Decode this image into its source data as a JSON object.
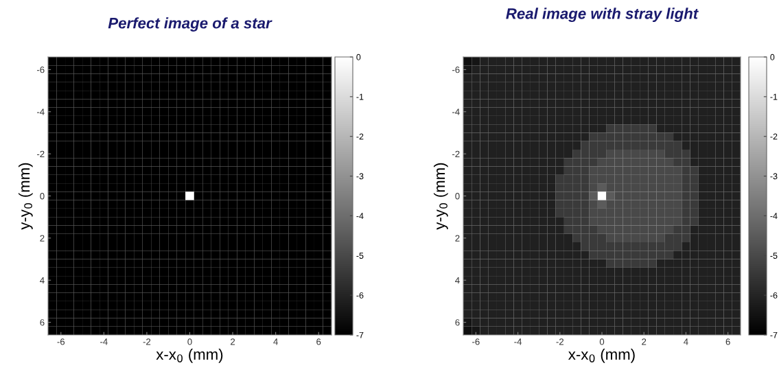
{
  "chart_data": [
    {
      "type": "heatmap",
      "title": "Perfect image of a star",
      "xlabel": "x-x$_{0}$ (mm)",
      "ylabel": "y-y$_{0}$ (mm)",
      "x": [
        -6.4,
        -6.0,
        -5.6,
        -5.2,
        -4.8,
        -4.4,
        -4.0,
        -3.6,
        -3.2,
        -2.8,
        -2.4,
        -2.0,
        -1.6,
        -1.2,
        -0.8,
        -0.4,
        0,
        0.4,
        0.8,
        1.2,
        1.6,
        2.0,
        2.4,
        2.8,
        3.2,
        3.6,
        4.0,
        4.4,
        4.8,
        5.2,
        5.6,
        6.0,
        6.4
      ],
      "y": [
        -6.4,
        -6.0,
        -5.6,
        -5.2,
        -4.8,
        -4.4,
        -4.0,
        -3.6,
        -3.2,
        -2.8,
        -2.4,
        -2.0,
        -1.6,
        -1.2,
        -0.8,
        -0.4,
        0,
        0.4,
        0.8,
        1.2,
        1.6,
        2.0,
        2.4,
        2.8,
        3.2,
        3.6,
        4.0,
        4.4,
        4.8,
        5.2,
        5.6,
        6.0,
        6.4
      ],
      "xlim": [
        -6.6,
        6.6
      ],
      "ylim": [
        6.6,
        -6.6
      ],
      "xticks": [
        -6,
        -4,
        -2,
        0,
        2,
        4,
        6
      ],
      "yticks": [
        -6,
        -4,
        -2,
        0,
        2,
        4,
        6
      ],
      "clim": [
        -7,
        0
      ],
      "cticks": [
        -7,
        -6,
        -5,
        -4,
        -3,
        -2,
        -1,
        0
      ],
      "cells": [
        [
          -7,
          -7,
          -7,
          -7,
          -7,
          -7,
          -7,
          -7,
          -7,
          -7,
          -7,
          -7,
          -7,
          -7,
          -7,
          -7,
          -7,
          -7,
          -7,
          -7,
          -7,
          -7,
          -7,
          -7,
          -7,
          -7,
          -7,
          -7,
          -7,
          -7,
          -7,
          -7,
          -7
        ],
        [
          -7,
          -7,
          -7,
          -7,
          -7,
          -7,
          -7,
          -7,
          -7,
          -7,
          -7,
          -7,
          -7,
          -7,
          -7,
          -7,
          -7,
          -7,
          -7,
          -7,
          -7,
          -7,
          -7,
          -7,
          -7,
          -7,
          -7,
          -7,
          -7,
          -7,
          -7,
          -7,
          -7
        ],
        [
          -7,
          -7,
          -7,
          -7,
          -7,
          -7,
          -7,
          -7,
          -7,
          -7,
          -7,
          -7,
          -7,
          -7,
          -7,
          -7,
          -7,
          -7,
          -7,
          -7,
          -7,
          -7,
          -7,
          -7,
          -7,
          -7,
          -7,
          -7,
          -7,
          -7,
          -7,
          -7,
          -7
        ],
        [
          -7,
          -7,
          -7,
          -7,
          -7,
          -7,
          -7,
          -7,
          -7,
          -7,
          -7,
          -7,
          -7,
          -7,
          -7,
          -7,
          -7,
          -7,
          -7,
          -7,
          -7,
          -7,
          -7,
          -7,
          -7,
          -7,
          -7,
          -7,
          -7,
          -7,
          -7,
          -7,
          -7
        ],
        [
          -7,
          -7,
          -7,
          -7,
          -7,
          -7,
          -7,
          -7,
          -7,
          -7,
          -7,
          -7,
          -7,
          -7,
          -7,
          -7,
          -7,
          -7,
          -7,
          -7,
          -7,
          -7,
          -7,
          -7,
          -7,
          -7,
          -7,
          -7,
          -7,
          -7,
          -7,
          -7,
          -7
        ],
        [
          -7,
          -7,
          -7,
          -7,
          -7,
          -7,
          -7,
          -7,
          -7,
          -7,
          -7,
          -7,
          -7,
          -7,
          -7,
          -7,
          -7,
          -7,
          -7,
          -7,
          -7,
          -7,
          -7,
          -7,
          -7,
          -7,
          -7,
          -7,
          -7,
          -7,
          -7,
          -7,
          -7
        ],
        [
          -7,
          -7,
          -7,
          -7,
          -7,
          -7,
          -7,
          -7,
          -7,
          -7,
          -7,
          -7,
          -7,
          -7,
          -7,
          -7,
          -7,
          -7,
          -7,
          -7,
          -7,
          -7,
          -7,
          -7,
          -7,
          -7,
          -7,
          -7,
          -7,
          -7,
          -7,
          -7,
          -7
        ],
        [
          -7,
          -7,
          -7,
          -7,
          -7,
          -7,
          -7,
          -7,
          -7,
          -7,
          -7,
          -7,
          -7,
          -7,
          -7,
          -7,
          -7,
          -7,
          -7,
          -7,
          -7,
          -7,
          -7,
          -7,
          -7,
          -7,
          -7,
          -7,
          -7,
          -7,
          -7,
          -7,
          -7
        ],
        [
          -7,
          -7,
          -7,
          -7,
          -7,
          -7,
          -7,
          -7,
          -7,
          -7,
          -7,
          -7,
          -7,
          -7,
          -7,
          -7,
          -7,
          -7,
          -7,
          -7,
          -7,
          -7,
          -7,
          -7,
          -7,
          -7,
          -7,
          -7,
          -7,
          -7,
          -7,
          -7,
          -7
        ],
        [
          -7,
          -7,
          -7,
          -7,
          -7,
          -7,
          -7,
          -7,
          -7,
          -7,
          -7,
          -7,
          -7,
          -7,
          -7,
          -7,
          -7,
          -7,
          -7,
          -7,
          -7,
          -7,
          -7,
          -7,
          -7,
          -7,
          -7,
          -7,
          -7,
          -7,
          -7,
          -7,
          -7
        ],
        [
          -7,
          -7,
          -7,
          -7,
          -7,
          -7,
          -7,
          -7,
          -7,
          -7,
          -7,
          -7,
          -7,
          -7,
          -7,
          -7,
          -7,
          -7,
          -7,
          -7,
          -7,
          -7,
          -7,
          -7,
          -7,
          -7,
          -7,
          -7,
          -7,
          -7,
          -7,
          -7,
          -7
        ],
        [
          -7,
          -7,
          -7,
          -7,
          -7,
          -7,
          -7,
          -7,
          -7,
          -7,
          -7,
          -7,
          -7,
          -7,
          -7,
          -7,
          -7,
          -7,
          -7,
          -7,
          -7,
          -7,
          -7,
          -7,
          -7,
          -7,
          -7,
          -7,
          -7,
          -7,
          -7,
          -7,
          -7
        ],
        [
          -7,
          -7,
          -7,
          -7,
          -7,
          -7,
          -7,
          -7,
          -7,
          -7,
          -7,
          -7,
          -7,
          -7,
          -7,
          -7,
          -7,
          -7,
          -7,
          -7,
          -7,
          -7,
          -7,
          -7,
          -7,
          -7,
          -7,
          -7,
          -7,
          -7,
          -7,
          -7,
          -7
        ],
        [
          -7,
          -7,
          -7,
          -7,
          -7,
          -7,
          -7,
          -7,
          -7,
          -7,
          -7,
          -7,
          -7,
          -7,
          -7,
          -7,
          -7,
          -7,
          -7,
          -7,
          -7,
          -7,
          -7,
          -7,
          -7,
          -7,
          -7,
          -7,
          -7,
          -7,
          -7,
          -7,
          -7
        ],
        [
          -7,
          -7,
          -7,
          -7,
          -7,
          -7,
          -7,
          -7,
          -7,
          -7,
          -7,
          -7,
          -7,
          -7,
          -7,
          -7,
          -7,
          -7,
          -7,
          -7,
          -7,
          -7,
          -7,
          -7,
          -7,
          -7,
          -7,
          -7,
          -7,
          -7,
          -7,
          -7,
          -7
        ],
        [
          -7,
          -7,
          -7,
          -7,
          -7,
          -7,
          -7,
          -7,
          -7,
          -7,
          -7,
          -7,
          -7,
          -7,
          -7,
          -7,
          -7,
          -7,
          -7,
          -7,
          -7,
          -7,
          -7,
          -7,
          -7,
          -7,
          -7,
          -7,
          -7,
          -7,
          -7,
          -7,
          -7
        ],
        [
          -7,
          -7,
          -7,
          -7,
          -7,
          -7,
          -7,
          -7,
          -7,
          -7,
          -7,
          -7,
          -7,
          -7,
          -7,
          -7,
          0,
          -7,
          -7,
          -7,
          -7,
          -7,
          -7,
          -7,
          -7,
          -7,
          -7,
          -7,
          -7,
          -7,
          -7,
          -7,
          -7
        ],
        [
          -7,
          -7,
          -7,
          -7,
          -7,
          -7,
          -7,
          -7,
          -7,
          -7,
          -7,
          -7,
          -7,
          -7,
          -7,
          -7,
          -7,
          -7,
          -7,
          -7,
          -7,
          -7,
          -7,
          -7,
          -7,
          -7,
          -7,
          -7,
          -7,
          -7,
          -7,
          -7,
          -7
        ],
        [
          -7,
          -7,
          -7,
          -7,
          -7,
          -7,
          -7,
          -7,
          -7,
          -7,
          -7,
          -7,
          -7,
          -7,
          -7,
          -7,
          -7,
          -7,
          -7,
          -7,
          -7,
          -7,
          -7,
          -7,
          -7,
          -7,
          -7,
          -7,
          -7,
          -7,
          -7,
          -7,
          -7
        ],
        [
          -7,
          -7,
          -7,
          -7,
          -7,
          -7,
          -7,
          -7,
          -7,
          -7,
          -7,
          -7,
          -7,
          -7,
          -7,
          -7,
          -7,
          -7,
          -7,
          -7,
          -7,
          -7,
          -7,
          -7,
          -7,
          -7,
          -7,
          -7,
          -7,
          -7,
          -7,
          -7,
          -7
        ],
        [
          -7,
          -7,
          -7,
          -7,
          -7,
          -7,
          -7,
          -7,
          -7,
          -7,
          -7,
          -7,
          -7,
          -7,
          -7,
          -7,
          -7,
          -7,
          -7,
          -7,
          -7,
          -7,
          -7,
          -7,
          -7,
          -7,
          -7,
          -7,
          -7,
          -7,
          -7,
          -7,
          -7
        ],
        [
          -7,
          -7,
          -7,
          -7,
          -7,
          -7,
          -7,
          -7,
          -7,
          -7,
          -7,
          -7,
          -7,
          -7,
          -7,
          -7,
          -7,
          -7,
          -7,
          -7,
          -7,
          -7,
          -7,
          -7,
          -7,
          -7,
          -7,
          -7,
          -7,
          -7,
          -7,
          -7,
          -7
        ],
        [
          -7,
          -7,
          -7,
          -7,
          -7,
          -7,
          -7,
          -7,
          -7,
          -7,
          -7,
          -7,
          -7,
          -7,
          -7,
          -7,
          -7,
          -7,
          -7,
          -7,
          -7,
          -7,
          -7,
          -7,
          -7,
          -7,
          -7,
          -7,
          -7,
          -7,
          -7,
          -7,
          -7
        ],
        [
          -7,
          -7,
          -7,
          -7,
          -7,
          -7,
          -7,
          -7,
          -7,
          -7,
          -7,
          -7,
          -7,
          -7,
          -7,
          -7,
          -7,
          -7,
          -7,
          -7,
          -7,
          -7,
          -7,
          -7,
          -7,
          -7,
          -7,
          -7,
          -7,
          -7,
          -7,
          -7,
          -7
        ],
        [
          -7,
          -7,
          -7,
          -7,
          -7,
          -7,
          -7,
          -7,
          -7,
          -7,
          -7,
          -7,
          -7,
          -7,
          -7,
          -7,
          -7,
          -7,
          -7,
          -7,
          -7,
          -7,
          -7,
          -7,
          -7,
          -7,
          -7,
          -7,
          -7,
          -7,
          -7,
          -7,
          -7
        ],
        [
          -7,
          -7,
          -7,
          -7,
          -7,
          -7,
          -7,
          -7,
          -7,
          -7,
          -7,
          -7,
          -7,
          -7,
          -7,
          -7,
          -7,
          -7,
          -7,
          -7,
          -7,
          -7,
          -7,
          -7,
          -7,
          -7,
          -7,
          -7,
          -7,
          -7,
          -7,
          -7,
          -7
        ],
        [
          -7,
          -7,
          -7,
          -7,
          -7,
          -7,
          -7,
          -7,
          -7,
          -7,
          -7,
          -7,
          -7,
          -7,
          -7,
          -7,
          -7,
          -7,
          -7,
          -7,
          -7,
          -7,
          -7,
          -7,
          -7,
          -7,
          -7,
          -7,
          -7,
          -7,
          -7,
          -7,
          -7
        ],
        [
          -7,
          -7,
          -7,
          -7,
          -7,
          -7,
          -7,
          -7,
          -7,
          -7,
          -7,
          -7,
          -7,
          -7,
          -7,
          -7,
          -7,
          -7,
          -7,
          -7,
          -7,
          -7,
          -7,
          -7,
          -7,
          -7,
          -7,
          -7,
          -7,
          -7,
          -7,
          -7,
          -7
        ],
        [
          -7,
          -7,
          -7,
          -7,
          -7,
          -7,
          -7,
          -7,
          -7,
          -7,
          -7,
          -7,
          -7,
          -7,
          -7,
          -7,
          -7,
          -7,
          -7,
          -7,
          -7,
          -7,
          -7,
          -7,
          -7,
          -7,
          -7,
          -7,
          -7,
          -7,
          -7,
          -7,
          -7
        ],
        [
          -7,
          -7,
          -7,
          -7,
          -7,
          -7,
          -7,
          -7,
          -7,
          -7,
          -7,
          -7,
          -7,
          -7,
          -7,
          -7,
          -7,
          -7,
          -7,
          -7,
          -7,
          -7,
          -7,
          -7,
          -7,
          -7,
          -7,
          -7,
          -7,
          -7,
          -7,
          -7,
          -7
        ],
        [
          -7,
          -7,
          -7,
          -7,
          -7,
          -7,
          -7,
          -7,
          -7,
          -7,
          -7,
          -7,
          -7,
          -7,
          -7,
          -7,
          -7,
          -7,
          -7,
          -7,
          -7,
          -7,
          -7,
          -7,
          -7,
          -7,
          -7,
          -7,
          -7,
          -7,
          -7,
          -7,
          -7
        ],
        [
          -7,
          -7,
          -7,
          -7,
          -7,
          -7,
          -7,
          -7,
          -7,
          -7,
          -7,
          -7,
          -7,
          -7,
          -7,
          -7,
          -7,
          -7,
          -7,
          -7,
          -7,
          -7,
          -7,
          -7,
          -7,
          -7,
          -7,
          -7,
          -7,
          -7,
          -7,
          -7,
          -7
        ],
        [
          -7,
          -7,
          -7,
          -7,
          -7,
          -7,
          -7,
          -7,
          -7,
          -7,
          -7,
          -7,
          -7,
          -7,
          -7,
          -7,
          -7,
          -7,
          -7,
          -7,
          -7,
          -7,
          -7,
          -7,
          -7,
          -7,
          -7,
          -7,
          -7,
          -7,
          -7,
          -7,
          -7
        ]
      ]
    },
    {
      "type": "heatmap",
      "title": "Real image with stray light",
      "xlabel": "x-x$_{0}$ (mm)",
      "ylabel": "y-y$_{0}$ (mm)",
      "x": [
        -6.4,
        -6.0,
        -5.6,
        -5.2,
        -4.8,
        -4.4,
        -4.0,
        -3.6,
        -3.2,
        -2.8,
        -2.4,
        -2.0,
        -1.6,
        -1.2,
        -0.8,
        -0.4,
        0,
        0.4,
        0.8,
        1.2,
        1.6,
        2.0,
        2.4,
        2.8,
        3.2,
        3.6,
        4.0,
        4.4,
        4.8,
        5.2,
        5.6,
        6.0,
        6.4
      ],
      "y": [
        -6.4,
        -6.0,
        -5.6,
        -5.2,
        -4.8,
        -4.4,
        -4.0,
        -3.6,
        -3.2,
        -2.8,
        -2.4,
        -2.0,
        -1.6,
        -1.2,
        -0.8,
        -0.4,
        0,
        0.4,
        0.8,
        1.2,
        1.6,
        2.0,
        2.4,
        2.8,
        3.2,
        3.6,
        4.0,
        4.4,
        4.8,
        5.2,
        5.6,
        6.0,
        6.4
      ],
      "xlim": [
        -6.6,
        6.6
      ],
      "ylim": [
        6.6,
        -6.6
      ],
      "xticks": [
        -6,
        -4,
        -2,
        0,
        2,
        4,
        6
      ],
      "yticks": [
        -6,
        -4,
        -2,
        0,
        2,
        4,
        6
      ],
      "clim": [
        -7,
        0
      ],
      "cticks": [
        -7,
        -6,
        -5,
        -4,
        -3,
        -2,
        -1,
        0
      ],
      "cells": [
        [
          -6.6,
          -6.4,
          -6.1,
          -6.1,
          -6.1,
          -6.1,
          -6.1,
          -6.1,
          -6.1,
          -6.1,
          -6.1,
          -6.1,
          -6.1,
          -6.1,
          -6.1,
          -6.1,
          -6.1,
          -6.1,
          -6.1,
          -6.1,
          -6.1,
          -6.1,
          -6.1,
          -6.1,
          -6.1,
          -6.1,
          -6.1,
          -6.1,
          -6.1,
          -6.1,
          -6.1,
          -6.1,
          -6.1
        ],
        [
          -6.4,
          -6.1,
          -6.1,
          -6.1,
          -6.1,
          -6.1,
          -6.1,
          -6.1,
          -6.1,
          -6.1,
          -6.1,
          -6.1,
          -6.1,
          -6.1,
          -6.1,
          -6.1,
          -6.1,
          -6.1,
          -6.1,
          -6.1,
          -6.1,
          -6.1,
          -6.1,
          -6.1,
          -6.1,
          -6.1,
          -6.1,
          -6.1,
          -6.1,
          -6.1,
          -6.1,
          -6.1,
          -6.1
        ],
        [
          -6.1,
          -6.1,
          -6.1,
          -6.1,
          -6.1,
          -6.1,
          -6.1,
          -6.1,
          -6.1,
          -6.1,
          -6.1,
          -6.1,
          -6.1,
          -6.1,
          -6.1,
          -6.1,
          -6.1,
          -6.1,
          -6.1,
          -6.1,
          -6.1,
          -6.1,
          -6.1,
          -6.1,
          -6.1,
          -6.1,
          -6.1,
          -6.1,
          -6.1,
          -6.1,
          -6.1,
          -6.1,
          -6.1
        ],
        [
          -6.1,
          -6.1,
          -6.1,
          -6.1,
          -6.1,
          -6.1,
          -6.1,
          -6.1,
          -6.1,
          -6.1,
          -6.1,
          -6.1,
          -6.1,
          -6.1,
          -6.1,
          -6.1,
          -6.1,
          -6.1,
          -6.1,
          -6.1,
          -6.1,
          -6.1,
          -6.1,
          -6.1,
          -6.1,
          -6.1,
          -6.1,
          -6.1,
          -6.1,
          -6.1,
          -6.1,
          -6.1,
          -6.1
        ],
        [
          -6.1,
          -6.1,
          -6.1,
          -6.1,
          -6.1,
          -6.1,
          -6.1,
          -6.1,
          -6.1,
          -6.1,
          -6.1,
          -6.1,
          -6.1,
          -6.1,
          -6.1,
          -6.1,
          -6.1,
          -6.1,
          -6.1,
          -6.1,
          -6.1,
          -6.1,
          -6.1,
          -6.1,
          -6.1,
          -6.1,
          -6.1,
          -6.1,
          -6.1,
          -6.1,
          -6.1,
          -6.1,
          -6.1
        ],
        [
          -6.1,
          -6.1,
          -6.1,
          -6.1,
          -6.1,
          -6.1,
          -6.1,
          -6.1,
          -6.1,
          -6.1,
          -6.1,
          -6.1,
          -6.1,
          -6.1,
          -6.1,
          -6.1,
          -6.1,
          -6.1,
          -6.1,
          -6.1,
          -6.1,
          -6.1,
          -6.1,
          -6.1,
          -6.1,
          -6.1,
          -6.1,
          -6.1,
          -6.1,
          -6.1,
          -6.1,
          -6.1,
          -6.1
        ],
        [
          -6.1,
          -6.1,
          -6.1,
          -6.1,
          -6.1,
          -6.1,
          -6.1,
          -6.1,
          -6.1,
          -6.1,
          -6.1,
          -6.1,
          -6.1,
          -6.1,
          -6.1,
          -6.1,
          -6.1,
          -6.1,
          -6.1,
          -6.1,
          -6.1,
          -6.1,
          -6.1,
          -6.1,
          -6.1,
          -6.1,
          -6.1,
          -6.1,
          -6.1,
          -6.1,
          -6.1,
          -6.1,
          -6.1
        ],
        [
          -6.1,
          -6.1,
          -6.1,
          -6.1,
          -6.1,
          -6.1,
          -6.1,
          -6.1,
          -6.1,
          -6.1,
          -6.1,
          -6.1,
          -6.1,
          -6.1,
          -6.1,
          -6.1,
          -6.1,
          -6.1,
          -6.1,
          -6.1,
          -6.1,
          -6.1,
          -6.1,
          -6.1,
          -6.1,
          -6.1,
          -6.1,
          -6.1,
          -6.1,
          -6.1,
          -6.1,
          -6.1,
          -6.1
        ],
        [
          -6.1,
          -6.1,
          -6.1,
          -6.1,
          -6.1,
          -6.1,
          -6.1,
          -6.1,
          -6.1,
          -6.1,
          -6.1,
          -6.1,
          -6.1,
          -6.1,
          -6.1,
          -6.1,
          -6.1,
          -5.4,
          -5.4,
          -5.4,
          -5.4,
          -5.4,
          -5.4,
          -6.1,
          -6.1,
          -6.1,
          -6.1,
          -6.1,
          -6.1,
          -6.1,
          -6.1,
          -6.1,
          -6.1
        ],
        [
          -6.1,
          -6.1,
          -6.1,
          -6.1,
          -6.1,
          -6.1,
          -6.1,
          -6.1,
          -6.1,
          -6.1,
          -6.1,
          -6.1,
          -6.1,
          -6.1,
          -6.1,
          -5.4,
          -5.4,
          -5.4,
          -5.4,
          -5.4,
          -5.4,
          -5.4,
          -5.4,
          -5.4,
          -5.4,
          -6.1,
          -6.1,
          -6.1,
          -6.1,
          -6.1,
          -6.1,
          -6.1,
          -6.1
        ],
        [
          -6.1,
          -6.1,
          -6.1,
          -6.1,
          -6.1,
          -6.1,
          -6.1,
          -6.1,
          -6.1,
          -6.1,
          -6.1,
          -6.1,
          -6.1,
          -6.1,
          -5.4,
          -5.4,
          -5.4,
          -5.4,
          -5.4,
          -5.4,
          -5.4,
          -5.4,
          -5.4,
          -5.4,
          -5.4,
          -5.4,
          -6.1,
          -6.1,
          -6.1,
          -6.1,
          -6.1,
          -6.1,
          -6.1
        ],
        [
          -6.1,
          -6.1,
          -6.1,
          -6.1,
          -6.1,
          -6.1,
          -6.1,
          -6.1,
          -6.1,
          -6.1,
          -6.1,
          -6.1,
          -6.1,
          -5.4,
          -5.4,
          -5.4,
          -5.4,
          -5.0,
          -5.0,
          -5.0,
          -5.0,
          -5.0,
          -5.0,
          -5.0,
          -5.4,
          -5.4,
          -5.4,
          -6.1,
          -6.1,
          -6.1,
          -6.1,
          -6.1,
          -6.1
        ],
        [
          -6.1,
          -6.1,
          -6.1,
          -6.1,
          -6.1,
          -6.1,
          -6.1,
          -6.1,
          -6.1,
          -6.1,
          -6.1,
          -6.1,
          -5.4,
          -5.4,
          -5.4,
          -5.4,
          -5.0,
          -5.0,
          -5.0,
          -5.0,
          -5.0,
          -5.0,
          -5.0,
          -5.0,
          -5.0,
          -5.4,
          -5.4,
          -6.1,
          -6.1,
          -6.1,
          -6.1,
          -6.1,
          -6.1
        ],
        [
          -6.1,
          -6.1,
          -6.1,
          -6.1,
          -6.1,
          -6.1,
          -6.1,
          -6.1,
          -6.1,
          -6.1,
          -6.1,
          -6.1,
          -5.4,
          -5.4,
          -5.4,
          -5.0,
          -5.0,
          -5.0,
          -5.0,
          -5.0,
          -5.0,
          -5.0,
          -5.0,
          -5.0,
          -5.0,
          -5.0,
          -5.4,
          -5.4,
          -6.1,
          -6.1,
          -6.1,
          -6.1,
          -6.1
        ],
        [
          -6.1,
          -6.1,
          -6.1,
          -6.1,
          -6.1,
          -6.1,
          -6.1,
          -6.1,
          -6.1,
          -6.1,
          -6.1,
          -5.4,
          -5.4,
          -5.4,
          -5.4,
          -5.0,
          -5.0,
          -5.0,
          -5.0,
          -5.0,
          -5.0,
          -5.0,
          -5.0,
          -5.0,
          -5.0,
          -5.0,
          -5.4,
          -5.4,
          -6.1,
          -6.1,
          -6.1,
          -6.1,
          -6.1
        ],
        [
          -6.1,
          -6.1,
          -6.1,
          -6.1,
          -6.1,
          -6.1,
          -6.1,
          -6.1,
          -6.1,
          -6.1,
          -6.1,
          -5.4,
          -5.4,
          -5.4,
          -5.4,
          -5.0,
          -4.5,
          -5.0,
          -5.0,
          -5.0,
          -5.0,
          -5.0,
          -5.0,
          -5.0,
          -5.0,
          -5.0,
          -5.4,
          -5.4,
          -6.1,
          -6.1,
          -6.1,
          -6.1,
          -6.1
        ],
        [
          -6.1,
          -6.1,
          -6.1,
          -6.1,
          -6.1,
          -6.1,
          -6.1,
          -6.1,
          -6.1,
          -6.1,
          -6.1,
          -5.4,
          -5.4,
          -5.4,
          -5.4,
          -4.5,
          0,
          -4.5,
          -5.0,
          -5.0,
          -5.0,
          -5.0,
          -5.0,
          -5.0,
          -5.0,
          -5.0,
          -5.4,
          -5.4,
          -6.1,
          -6.1,
          -6.1,
          -6.1,
          -6.1
        ],
        [
          -6.1,
          -6.1,
          -6.1,
          -6.1,
          -6.1,
          -6.1,
          -6.1,
          -6.1,
          -6.1,
          -6.1,
          -6.1,
          -5.4,
          -5.4,
          -5.4,
          -5.4,
          -5.0,
          -4.5,
          -5.0,
          -5.0,
          -5.0,
          -5.0,
          -5.0,
          -5.0,
          -5.0,
          -5.0,
          -5.0,
          -5.4,
          -5.4,
          -6.1,
          -6.1,
          -6.1,
          -6.1,
          -6.1
        ],
        [
          -6.1,
          -6.1,
          -6.1,
          -6.1,
          -6.1,
          -6.1,
          -6.1,
          -6.1,
          -6.1,
          -6.1,
          -6.1,
          -5.4,
          -5.4,
          -5.4,
          -5.4,
          -5.0,
          -5.0,
          -5.0,
          -5.0,
          -5.0,
          -5.0,
          -5.0,
          -5.0,
          -5.0,
          -5.0,
          -5.0,
          -5.4,
          -5.4,
          -6.1,
          -6.1,
          -6.1,
          -6.1,
          -6.1
        ],
        [
          -6.1,
          -6.1,
          -6.1,
          -6.1,
          -6.1,
          -6.1,
          -6.1,
          -6.1,
          -6.1,
          -6.1,
          -6.1,
          -6.1,
          -5.4,
          -5.4,
          -5.4,
          -5.0,
          -5.0,
          -5.0,
          -5.0,
          -5.0,
          -5.0,
          -5.0,
          -5.0,
          -5.0,
          -5.0,
          -5.0,
          -5.4,
          -5.4,
          -6.1,
          -6.1,
          -6.1,
          -6.1,
          -6.1
        ],
        [
          -6.1,
          -6.1,
          -6.1,
          -6.1,
          -6.1,
          -6.1,
          -6.1,
          -6.1,
          -6.1,
          -6.1,
          -6.1,
          -6.1,
          -5.4,
          -5.4,
          -5.4,
          -5.4,
          -5.0,
          -5.0,
          -5.0,
          -5.0,
          -5.0,
          -5.0,
          -5.0,
          -5.0,
          -5.0,
          -5.4,
          -5.4,
          -6.1,
          -6.1,
          -6.1,
          -6.1,
          -6.1,
          -6.1
        ],
        [
          -6.1,
          -6.1,
          -6.1,
          -6.1,
          -6.1,
          -6.1,
          -6.1,
          -6.1,
          -6.1,
          -6.1,
          -6.1,
          -6.1,
          -6.1,
          -5.4,
          -5.4,
          -5.4,
          -5.4,
          -5.0,
          -5.0,
          -5.0,
          -5.0,
          -5.0,
          -5.0,
          -5.0,
          -5.4,
          -5.4,
          -5.4,
          -6.1,
          -6.1,
          -6.1,
          -6.1,
          -6.1,
          -6.1
        ],
        [
          -6.1,
          -6.1,
          -6.1,
          -6.1,
          -6.1,
          -6.1,
          -6.1,
          -6.1,
          -6.1,
          -6.1,
          -6.1,
          -6.1,
          -6.1,
          -6.1,
          -5.4,
          -5.4,
          -5.4,
          -5.4,
          -5.4,
          -5.4,
          -5.4,
          -5.4,
          -5.4,
          -5.4,
          -5.4,
          -5.4,
          -6.1,
          -6.1,
          -6.1,
          -6.1,
          -6.1,
          -6.1,
          -6.1
        ],
        [
          -6.1,
          -6.1,
          -6.1,
          -6.1,
          -6.1,
          -6.1,
          -6.1,
          -6.1,
          -6.1,
          -6.1,
          -6.1,
          -6.1,
          -6.1,
          -6.1,
          -6.1,
          -5.4,
          -5.4,
          -5.4,
          -5.4,
          -5.4,
          -5.4,
          -5.4,
          -5.4,
          -5.4,
          -5.4,
          -6.1,
          -6.1,
          -6.1,
          -6.1,
          -6.1,
          -6.1,
          -6.1,
          -6.1
        ],
        [
          -6.1,
          -6.1,
          -6.1,
          -6.1,
          -6.1,
          -6.1,
          -6.1,
          -6.1,
          -6.1,
          -6.1,
          -6.1,
          -6.1,
          -6.1,
          -6.1,
          -6.1,
          -6.1,
          -6.1,
          -5.4,
          -5.4,
          -5.4,
          -5.4,
          -5.4,
          -5.4,
          -6.1,
          -6.1,
          -6.1,
          -6.1,
          -6.1,
          -6.1,
          -6.1,
          -6.1,
          -6.1,
          -6.1
        ],
        [
          -6.1,
          -6.1,
          -6.1,
          -6.1,
          -6.1,
          -6.1,
          -6.1,
          -6.1,
          -6.1,
          -6.1,
          -6.1,
          -6.1,
          -6.1,
          -6.1,
          -6.1,
          -6.1,
          -6.1,
          -6.1,
          -6.1,
          -6.1,
          -6.1,
          -6.1,
          -6.1,
          -6.1,
          -6.1,
          -6.1,
          -6.1,
          -6.1,
          -6.1,
          -6.1,
          -6.1,
          -6.1,
          -6.1
        ],
        [
          -6.1,
          -6.1,
          -6.1,
          -6.1,
          -6.1,
          -6.1,
          -6.1,
          -6.1,
          -6.1,
          -6.1,
          -6.1,
          -6.1,
          -6.1,
          -6.1,
          -6.1,
          -6.1,
          -6.1,
          -6.1,
          -6.1,
          -6.1,
          -6.1,
          -6.1,
          -6.1,
          -6.1,
          -6.1,
          -6.1,
          -6.1,
          -6.1,
          -6.1,
          -6.1,
          -6.1,
          -6.1,
          -6.1
        ],
        [
          -6.1,
          -6.1,
          -6.1,
          -6.1,
          -6.1,
          -6.1,
          -6.1,
          -6.1,
          -6.1,
          -6.1,
          -6.1,
          -6.1,
          -6.1,
          -6.1,
          -6.1,
          -6.1,
          -6.1,
          -6.1,
          -6.1,
          -6.1,
          -6.1,
          -6.1,
          -6.1,
          -6.1,
          -6.1,
          -6.1,
          -6.1,
          -6.1,
          -6.1,
          -6.1,
          -6.1,
          -6.1,
          -6.1
        ],
        [
          -6.1,
          -6.1,
          -6.1,
          -6.1,
          -6.1,
          -6.1,
          -6.1,
          -6.1,
          -6.1,
          -6.1,
          -6.1,
          -6.1,
          -6.1,
          -6.1,
          -6.1,
          -6.1,
          -6.1,
          -6.1,
          -6.1,
          -6.1,
          -6.1,
          -6.1,
          -6.1,
          -6.1,
          -6.1,
          -6.1,
          -6.1,
          -6.1,
          -6.1,
          -6.1,
          -6.1,
          -6.1,
          -6.1
        ],
        [
          -6.1,
          -6.1,
          -6.1,
          -6.1,
          -6.1,
          -6.1,
          -6.1,
          -6.1,
          -6.1,
          -6.1,
          -6.1,
          -6.1,
          -6.1,
          -6.1,
          -6.1,
          -6.1,
          -6.1,
          -6.1,
          -6.1,
          -6.1,
          -6.1,
          -6.1,
          -6.1,
          -6.1,
          -6.1,
          -6.1,
          -6.1,
          -6.1,
          -6.1,
          -6.1,
          -6.1,
          -6.1,
          -6.1
        ],
        [
          -6.1,
          -6.1,
          -6.1,
          -6.1,
          -6.1,
          -6.1,
          -6.1,
          -6.1,
          -6.1,
          -6.1,
          -6.1,
          -6.1,
          -6.1,
          -6.1,
          -6.1,
          -6.1,
          -6.1,
          -6.1,
          -6.1,
          -6.1,
          -6.1,
          -6.1,
          -6.1,
          -6.1,
          -6.1,
          -6.1,
          -6.1,
          -6.1,
          -6.1,
          -6.1,
          -6.1,
          -6.1,
          -6.1
        ],
        [
          -6.4,
          -6.1,
          -6.1,
          -6.1,
          -6.1,
          -6.1,
          -6.1,
          -6.1,
          -6.1,
          -6.1,
          -6.1,
          -6.1,
          -6.1,
          -6.1,
          -6.1,
          -6.1,
          -6.1,
          -6.1,
          -6.1,
          -6.1,
          -6.1,
          -6.1,
          -6.1,
          -6.1,
          -6.1,
          -6.1,
          -6.1,
          -6.1,
          -6.1,
          -6.1,
          -6.1,
          -6.1,
          -6.1
        ],
        [
          -6.6,
          -6.4,
          -6.1,
          -6.1,
          -6.1,
          -6.1,
          -6.1,
          -6.1,
          -6.1,
          -6.1,
          -6.1,
          -6.1,
          -6.1,
          -6.1,
          -6.1,
          -6.1,
          -6.1,
          -6.1,
          -6.1,
          -6.1,
          -6.1,
          -6.1,
          -6.1,
          -6.1,
          -6.1,
          -6.1,
          -6.1,
          -6.1,
          -6.1,
          -6.1,
          -6.1,
          -6.1,
          -6.1
        ]
      ]
    }
  ]
}
